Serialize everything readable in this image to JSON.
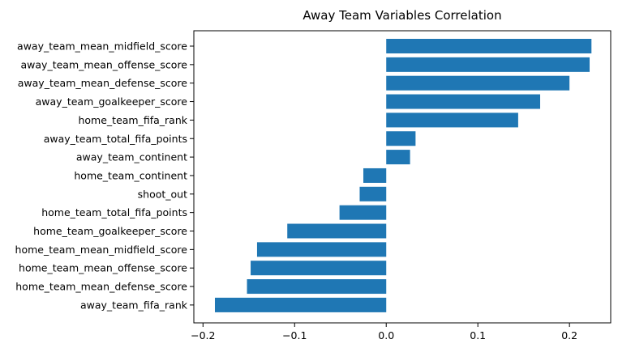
{
  "chart_data": {
    "type": "bar",
    "orientation": "horizontal",
    "title": "Away Team Variables Correlation",
    "xlabel": "",
    "ylabel": "",
    "xlim": [
      -0.21,
      0.245
    ],
    "xticks": [
      -0.2,
      -0.1,
      0.0,
      0.1,
      0.2
    ],
    "xtick_labels": [
      "−0.2",
      "−0.1",
      "0.0",
      "0.1",
      "0.2"
    ],
    "grid": false,
    "bar_color": "#1f77b4",
    "categories": [
      "away_team_mean_midfield_score",
      "away_team_mean_offense_score",
      "away_team_mean_defense_score",
      "away_team_goalkeeper_score",
      "home_team_fifa_rank",
      "away_team_total_fifa_points",
      "away_team_continent",
      "home_team_continent",
      "shoot_out",
      "home_team_total_fifa_points",
      "home_team_goalkeeper_score",
      "home_team_mean_midfield_score",
      "home_team_mean_offense_score",
      "home_team_mean_defense_score",
      "away_team_fifa_rank"
    ],
    "values": [
      0.224,
      0.222,
      0.2,
      0.168,
      0.144,
      0.032,
      0.026,
      -0.025,
      -0.029,
      -0.051,
      -0.108,
      -0.141,
      -0.148,
      -0.152,
      -0.187
    ]
  }
}
